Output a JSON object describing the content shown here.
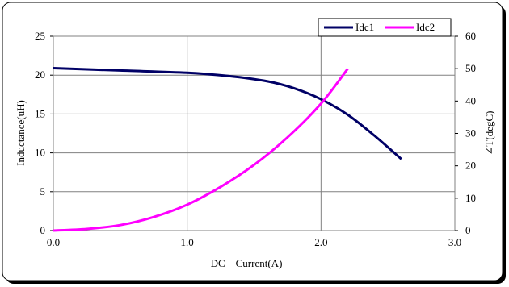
{
  "chart_data": {
    "type": "line",
    "xlabel": "DC    Current(A)",
    "ylabel": "Inductance(uH)",
    "y2label": "∠T(degC)",
    "xlim": [
      0,
      3
    ],
    "ylim": [
      0,
      25
    ],
    "y2lim": [
      0,
      60
    ],
    "x_ticks": [
      "0.0",
      "1.0",
      "2.0",
      "3.0"
    ],
    "y_ticks": [
      "0",
      "5",
      "10",
      "15",
      "20",
      "25"
    ],
    "y2_ticks": [
      "0",
      "10",
      "20",
      "30",
      "40",
      "50",
      "60"
    ],
    "x_tick_values": [
      0,
      1,
      2,
      3
    ],
    "y_tick_values": [
      0,
      5,
      10,
      15,
      20,
      25
    ],
    "y2_tick_values": [
      0,
      10,
      20,
      30,
      40,
      50,
      60
    ],
    "grid": true,
    "legend_position": "top-right",
    "series": [
      {
        "name": "Idc1",
        "axis": "left",
        "color": "#000066",
        "x": [
          0,
          0.5,
          1.0,
          1.3,
          1.6,
          1.8,
          2.0,
          2.2,
          2.4,
          2.6
        ],
        "y": [
          20.9,
          20.6,
          20.3,
          19.9,
          19.2,
          18.3,
          16.9,
          14.9,
          12.2,
          9.2
        ]
      },
      {
        "name": "Idc2",
        "axis": "right",
        "color": "#ff00ff",
        "x": [
          0,
          0.25,
          0.5,
          0.75,
          1.0,
          1.25,
          1.5,
          1.75,
          2.0,
          2.2
        ],
        "y": [
          0,
          0.5,
          1.7,
          4.2,
          8.0,
          13.5,
          20.3,
          28.8,
          39.2,
          50.0
        ]
      }
    ]
  }
}
